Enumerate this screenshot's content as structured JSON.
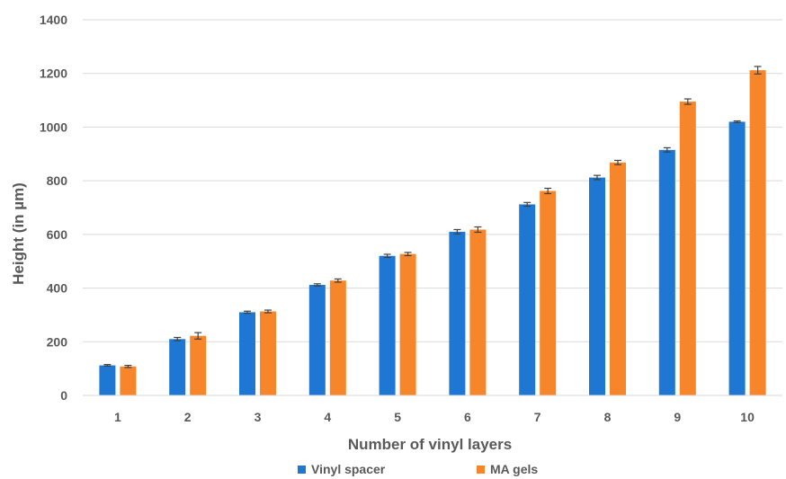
{
  "chart_data": {
    "type": "bar",
    "title": "",
    "xlabel": "Number of vinyl layers",
    "ylabel": "Height (in µm)",
    "ylim": [
      0,
      1400
    ],
    "yticks": [
      0,
      200,
      400,
      600,
      800,
      1000,
      1200,
      1400
    ],
    "categories": [
      "1",
      "2",
      "3",
      "4",
      "5",
      "6",
      "7",
      "8",
      "9",
      "10"
    ],
    "grid": "horizontal",
    "legend_position": "bottom",
    "series": [
      {
        "name": "Vinyl spacer",
        "color": "#1f77d4",
        "values": [
          112,
          210,
          310,
          412,
          520,
          610,
          712,
          812,
          915,
          1020
        ],
        "errors": [
          3,
          6,
          4,
          4,
          6,
          8,
          7,
          8,
          8,
          3
        ]
      },
      {
        "name": "MA gels",
        "color": "#f7862a",
        "values": [
          108,
          222,
          313,
          428,
          527,
          618,
          762,
          868,
          1095,
          1212
        ],
        "errors": [
          4,
          12,
          5,
          6,
          6,
          10,
          10,
          8,
          10,
          14
        ]
      }
    ]
  }
}
